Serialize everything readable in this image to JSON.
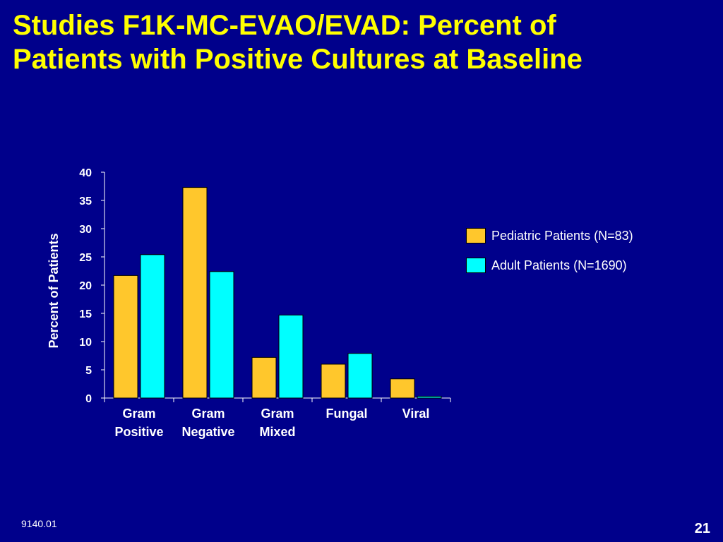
{
  "slide": {
    "title_line1": "Studies F1K-MC-EVAO/EVAD: Percent of",
    "title_line2": "Patients with Positive Cultures at Baseline",
    "footer_code": "9140.01",
    "page_number": "21"
  },
  "colors": {
    "background": "#00008b",
    "title": "#ffff00",
    "pediatric": "#ffc72c",
    "adult": "#00ffff",
    "text": "#ffffff"
  },
  "chart_data": {
    "type": "bar",
    "categories": [
      [
        "Gram",
        "Positive"
      ],
      [
        "Gram",
        "Negative"
      ],
      [
        "Gram",
        "Mixed"
      ],
      [
        "Fungal"
      ],
      [
        "Viral"
      ]
    ],
    "series": [
      {
        "name": "Pediatric Patients (N=83)",
        "color": "#ffc72c",
        "values": [
          21.7,
          37.3,
          7.2,
          6.0,
          3.4
        ]
      },
      {
        "name": "Adult Patients (N=1690)",
        "color": "#00ffff",
        "values": [
          25.4,
          22.4,
          14.7,
          7.9,
          0.3
        ]
      }
    ],
    "ylabel": "Percent of Patients",
    "ylim": [
      0,
      40
    ],
    "yticks": [
      0,
      5,
      10,
      15,
      20,
      25,
      30,
      35,
      40
    ],
    "legend_position": "right",
    "grid": false
  }
}
